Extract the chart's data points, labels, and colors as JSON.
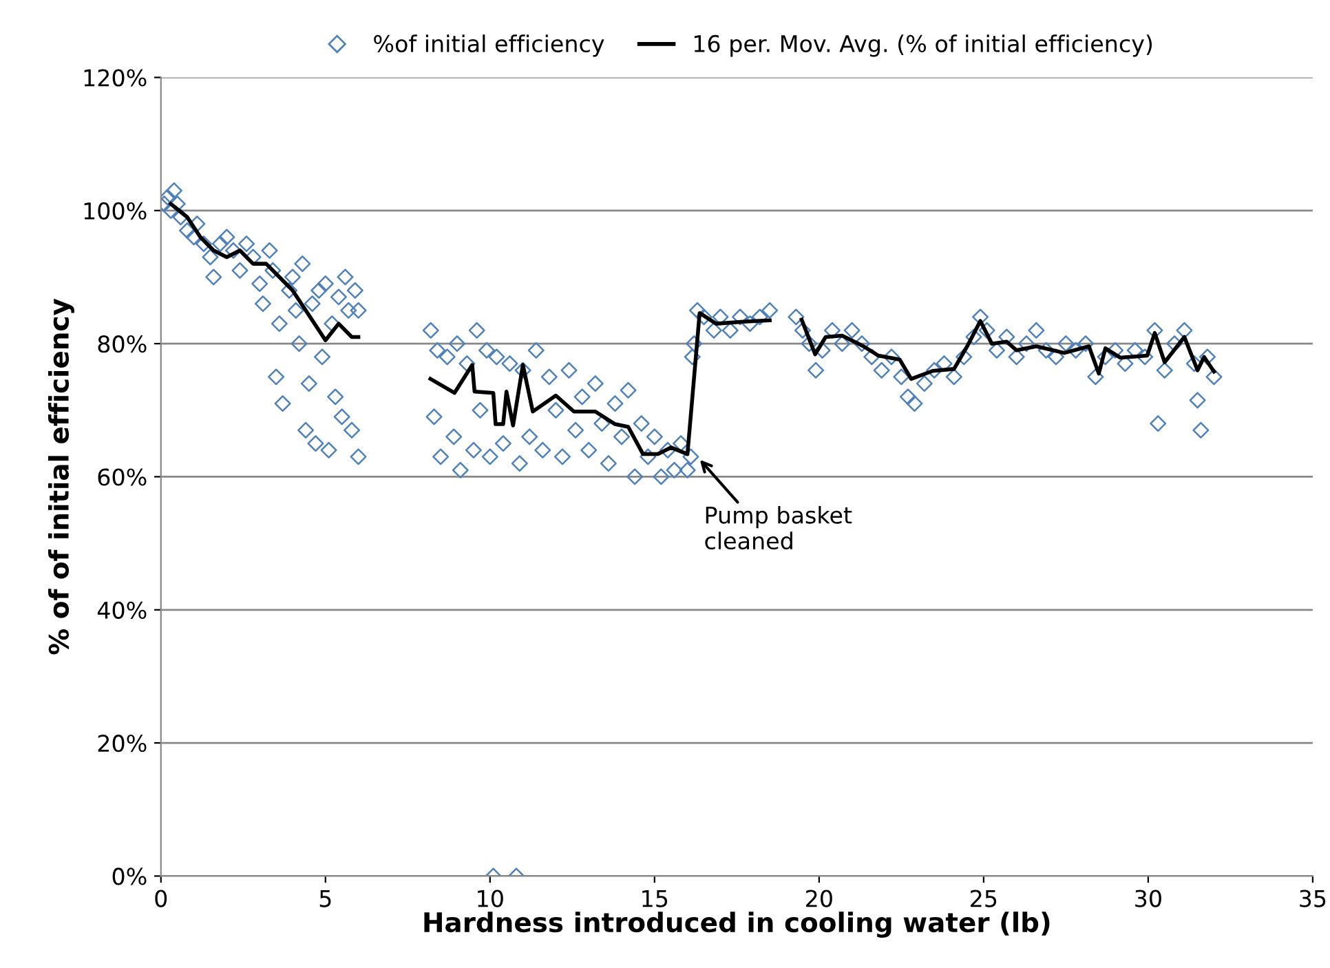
{
  "chart_data": {
    "type": "scatter",
    "xlabel": "Hardness introduced in cooling water (lb)",
    "ylabel": "% of of initial efficiency",
    "xlim": [
      0,
      35
    ],
    "xticks": [
      0,
      5,
      10,
      15,
      20,
      25,
      30,
      35
    ],
    "ylim": [
      0,
      120
    ],
    "yticks": [
      {
        "value": 0,
        "label": "0%"
      },
      {
        "value": 20,
        "label": "20%"
      },
      {
        "value": 40,
        "label": "40%"
      },
      {
        "value": 60,
        "label": "60%"
      },
      {
        "value": 80,
        "label": "80%"
      },
      {
        "value": 100,
        "label": "100%"
      },
      {
        "value": 120,
        "label": "120%"
      }
    ],
    "grid": "y",
    "legend": "top",
    "annotations": [
      {
        "text": "Pump basket\ncleaned",
        "x": 16.3,
        "y": 63
      }
    ],
    "series": [
      {
        "name": "%of initial efficiency",
        "marker": "diamond",
        "color": "#4f81bd",
        "x": [
          0.1,
          0.2,
          0.3,
          0.4,
          0.5,
          0.6,
          0.8,
          1.0,
          1.1,
          1.3,
          1.5,
          1.6,
          1.8,
          2.0,
          2.2,
          2.4,
          2.6,
          2.8,
          3.0,
          3.1,
          3.3,
          3.4,
          3.5,
          3.6,
          3.7,
          3.9,
          4.0,
          4.1,
          4.2,
          4.3,
          4.4,
          4.5,
          4.6,
          4.7,
          4.8,
          4.9,
          5.0,
          5.1,
          5.2,
          5.3,
          5.4,
          5.5,
          5.6,
          5.7,
          5.8,
          5.9,
          6.0,
          6.0,
          8.2,
          8.3,
          8.4,
          8.5,
          8.7,
          8.9,
          9.0,
          9.1,
          9.3,
          9.5,
          9.6,
          9.7,
          9.9,
          10.1,
          10.0,
          10.2,
          10.4,
          10.6,
          10.8,
          10.9,
          11.0,
          11.2,
          11.4,
          11.6,
          11.8,
          12.0,
          12.2,
          12.4,
          12.6,
          12.8,
          13.0,
          13.2,
          13.4,
          13.6,
          13.8,
          14.0,
          14.2,
          14.4,
          14.6,
          14.8,
          15.0,
          15.2,
          15.4,
          15.6,
          15.8,
          16.0,
          16.1,
          16.15,
          16.2,
          16.3,
          16.5,
          16.8,
          17.0,
          17.3,
          17.6,
          17.9,
          18.2,
          18.5,
          19.3,
          19.5,
          19.7,
          19.9,
          20.1,
          20.4,
          20.7,
          21.0,
          21.3,
          21.6,
          21.9,
          22.2,
          22.5,
          22.7,
          22.9,
          23.2,
          23.5,
          23.8,
          24.1,
          24.4,
          24.7,
          24.9,
          25.1,
          25.4,
          25.7,
          26.0,
          26.3,
          26.6,
          26.9,
          27.2,
          27.5,
          27.8,
          28.1,
          28.4,
          28.7,
          29.0,
          29.3,
          29.6,
          29.9,
          30.2,
          30.3,
          30.5,
          30.8,
          31.1,
          31.4,
          31.5,
          31.6,
          31.8,
          32.0
        ],
        "values": [
          101,
          102,
          100,
          103,
          101,
          99,
          97,
          96,
          98,
          95,
          93,
          90,
          95,
          96,
          94,
          91,
          95,
          93,
          89,
          86,
          94,
          91,
          75,
          83,
          71,
          88,
          90,
          85,
          80,
          92,
          67,
          74,
          86,
          65,
          88,
          78,
          89,
          64,
          83,
          72,
          87,
          69,
          90,
          85,
          67,
          88,
          63,
          85,
          82,
          69,
          79,
          63,
          78,
          66,
          80,
          61,
          77,
          64,
          82,
          70,
          79,
          0,
          63,
          78,
          65,
          77,
          0,
          62,
          76,
          66,
          79,
          64,
          75,
          70,
          63,
          76,
          67,
          72,
          64,
          74,
          68,
          62,
          71,
          66,
          73,
          60,
          68,
          63,
          66,
          60,
          64,
          61,
          65,
          61,
          63,
          78,
          80,
          85,
          84,
          82,
          84,
          82,
          84,
          83,
          84,
          85,
          84,
          82,
          80,
          76,
          79,
          82,
          80,
          82,
          80,
          78,
          76,
          78,
          75,
          72,
          71,
          74,
          76,
          77,
          75,
          78,
          81,
          84,
          82,
          79,
          81,
          78,
          80,
          82,
          79,
          78,
          80,
          79,
          80,
          75,
          78,
          79,
          77,
          79,
          78,
          82,
          68,
          76,
          80,
          82,
          77,
          71.5,
          67,
          78,
          75
        ]
      },
      {
        "name": "16 per. Mov. Avg. (% of initial efficiency)",
        "type": "line",
        "marker": "none",
        "line_style": "solid",
        "color": "#000000",
        "x": [
          0.3,
          0.8,
          1.2,
          1.6,
          2.0,
          2.4,
          2.8,
          3.2,
          3.6,
          4.0,
          4.4,
          4.8,
          5.0,
          5.4,
          5.8,
          6.0,
          7.0,
          8.19,
          8.92,
          9.46,
          9.53,
          10.1,
          10.17,
          10.4,
          10.5,
          10.7,
          11.0,
          11.3,
          12.0,
          12.55,
          13.2,
          13.8,
          14.2,
          14.65,
          15.1,
          15.5,
          16.0,
          16.37,
          16.87,
          17.7,
          18.5,
          19.0,
          19.47,
          19.88,
          20.2,
          20.7,
          21.35,
          21.8,
          22.45,
          22.8,
          23.45,
          24.1,
          24.5,
          24.9,
          25.25,
          25.7,
          26.0,
          26.6,
          27.45,
          28.2,
          28.5,
          28.7,
          29.15,
          29.97,
          30.2,
          30.5,
          31.1,
          31.5,
          31.7,
          32.0
        ],
        "values": [
          101,
          99,
          96,
          94,
          93,
          94,
          92,
          92,
          90,
          88,
          85,
          82,
          80.5,
          83,
          81,
          81,
          null,
          74.7,
          72.6,
          76.8,
          72.8,
          72.6,
          67.9,
          67.9,
          72.8,
          67.7,
          76.8,
          69.8,
          72.2,
          69.8,
          69.8,
          67.9,
          67.5,
          63.4,
          63.4,
          64.4,
          63.4,
          84.6,
          83,
          83.3,
          83.5,
          null,
          83.6,
          78.4,
          81,
          81.2,
          79.6,
          78.2,
          77.6,
          74.7,
          75.9,
          76.2,
          79.6,
          83.4,
          80,
          80.3,
          79,
          79.6,
          78.6,
          79.6,
          75.5,
          79.3,
          77.9,
          78.2,
          81.6,
          77.2,
          81,
          76,
          78,
          75.8
        ]
      }
    ]
  }
}
